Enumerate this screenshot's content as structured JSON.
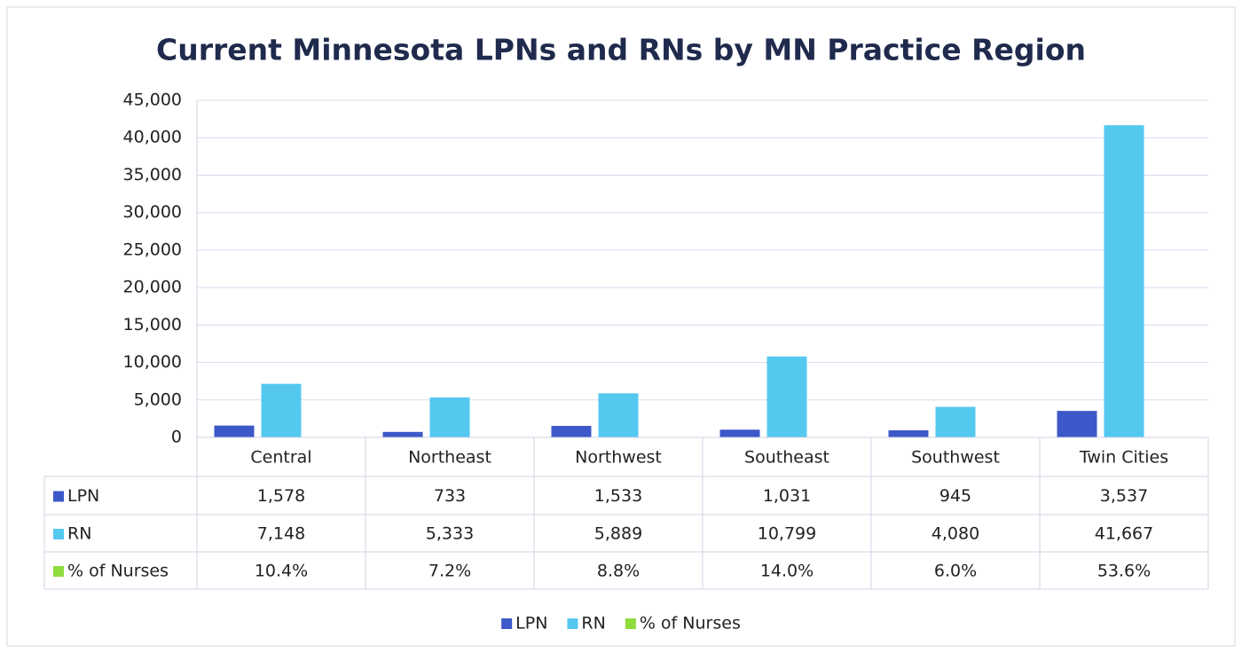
{
  "chart_data": {
    "type": "bar",
    "title": "Current Minnesota LPNs and RNs by MN Practice Region",
    "categories": [
      "Central",
      "Northeast",
      "Northwest",
      "Southeast",
      "Southwest",
      "Twin Cities"
    ],
    "series": [
      {
        "name": "LPN",
        "color": "#3d58c9",
        "values": [
          1578,
          733,
          1533,
          1031,
          945,
          3537
        ],
        "value_labels": [
          "1,578",
          "733",
          "1,533",
          "1,031",
          "945",
          "3,537"
        ]
      },
      {
        "name": "RN",
        "color": "#55c8f0",
        "values": [
          7148,
          5333,
          5889,
          10799,
          4080,
          41667
        ],
        "value_labels": [
          "7,148",
          "5,333",
          "5,889",
          "10,799",
          "4,080",
          "41,667"
        ]
      },
      {
        "name": "% of Nurses",
        "color": "#8fdc3d",
        "values": [
          10.4,
          7.2,
          8.8,
          14.0,
          6.0,
          53.6
        ],
        "value_labels": [
          "10.4%",
          "7.2%",
          "8.8%",
          "14.0%",
          "6.0%",
          "53.6%"
        ]
      }
    ],
    "ylim": [
      0,
      45000
    ],
    "yticks": [
      0,
      {
        "value": 5000,
        "label": "5,000"
      },
      {
        "value": 10000,
        "label": "10,000"
      },
      {
        "value": 15000,
        "label": "15,000"
      },
      {
        "value": 20000,
        "label": "20,000"
      },
      {
        "value": 25000,
        "label": "25,000"
      },
      {
        "value": 30000,
        "label": "30,000"
      },
      {
        "value": 35000,
        "label": "35,000"
      },
      {
        "value": 40000,
        "label": "40,000"
      },
      {
        "value": 45000,
        "label": "45,000"
      }
    ],
    "grid": true,
    "legend": "bottom"
  }
}
